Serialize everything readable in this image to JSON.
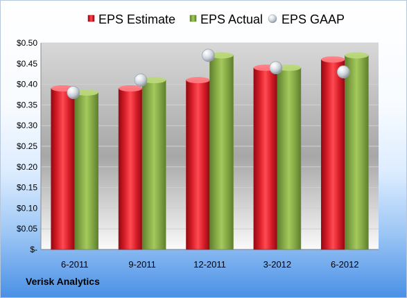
{
  "chart_data": {
    "type": "bar",
    "categories": [
      "6-2011",
      "9-2011",
      "12-2011",
      "3-2012",
      "6-2012"
    ],
    "series": [
      {
        "name": "EPS Estimate",
        "values": [
          0.39,
          0.39,
          0.41,
          0.44,
          0.46
        ],
        "color": "#d11f2b",
        "mark": "bar"
      },
      {
        "name": "EPS Actual",
        "values": [
          0.38,
          0.41,
          0.47,
          0.44,
          0.47
        ],
        "color": "#7ea241",
        "mark": "bar"
      },
      {
        "name": "EPS GAAP",
        "values": [
          0.38,
          0.41,
          0.47,
          0.44,
          0.43
        ],
        "color": "#b8bec6",
        "mark": "marker"
      }
    ],
    "y_ticks": [
      "$-",
      "$0.05",
      "$0.10",
      "$0.15",
      "$0.20",
      "$0.25",
      "$0.30",
      "$0.35",
      "$0.40",
      "$0.45",
      "$0.50"
    ],
    "ylim": [
      0,
      0.5
    ],
    "grid": true,
    "legend_position": "top"
  },
  "footer": {
    "company": "Verisk Analytics"
  }
}
